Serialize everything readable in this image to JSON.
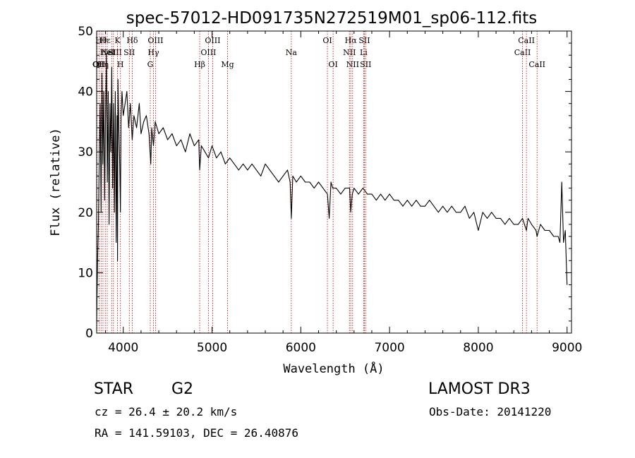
{
  "chart_data": {
    "type": "line",
    "title": "spec-57012-HD091735N272519M01_sp06-112.fits",
    "xlabel": "Wavelength (Å)",
    "ylabel": "Flux (relative)",
    "xlim": [
      3700,
      9050
    ],
    "ylim": [
      0,
      50
    ],
    "xticks": [
      4000,
      5000,
      6000,
      7000,
      8000,
      9000
    ],
    "yticks": [
      0,
      10,
      20,
      30,
      40,
      50
    ],
    "grid": false,
    "series": [
      {
        "name": "flux",
        "x": [
          3700,
          3710,
          3720,
          3730,
          3740,
          3750,
          3760,
          3770,
          3780,
          3790,
          3800,
          3810,
          3820,
          3830,
          3840,
          3850,
          3860,
          3870,
          3880,
          3890,
          3900,
          3910,
          3920,
          3930,
          3935,
          3940,
          3950,
          3960,
          3968,
          3975,
          3985,
          4000,
          4020,
          4040,
          4060,
          4080,
          4101,
          4120,
          4150,
          4180,
          4200,
          4230,
          4260,
          4290,
          4310,
          4320,
          4340,
          4360,
          4400,
          4450,
          4500,
          4550,
          4600,
          4650,
          4700,
          4750,
          4800,
          4850,
          4861,
          4880,
          4920,
          4960,
          5000,
          5050,
          5100,
          5150,
          5200,
          5250,
          5300,
          5350,
          5400,
          5450,
          5500,
          5550,
          5600,
          5650,
          5700,
          5750,
          5800,
          5850,
          5880,
          5893,
          5910,
          5950,
          6000,
          6050,
          6100,
          6150,
          6200,
          6250,
          6300,
          6320,
          6340,
          6360,
          6400,
          6450,
          6500,
          6550,
          6563,
          6580,
          6600,
          6650,
          6700,
          6750,
          6800,
          6850,
          6900,
          6950,
          7000,
          7050,
          7100,
          7150,
          7200,
          7250,
          7300,
          7350,
          7400,
          7450,
          7500,
          7550,
          7600,
          7650,
          7700,
          7750,
          7800,
          7850,
          7900,
          7950,
          8000,
          8050,
          8100,
          8150,
          8200,
          8250,
          8300,
          8350,
          8400,
          8450,
          8498,
          8520,
          8542,
          8560,
          8600,
          8650,
          8662,
          8700,
          8750,
          8800,
          8850,
          8900,
          8920,
          8940,
          8960,
          8980,
          9000
        ],
        "values": [
          2,
          12,
          18,
          30,
          38,
          20,
          43,
          28,
          40,
          22,
          36,
          46,
          25,
          40,
          18,
          38,
          30,
          44,
          24,
          38,
          20,
          40,
          15,
          36,
          12,
          42,
          34,
          28,
          20,
          36,
          40,
          36,
          38,
          40,
          34,
          38,
          32,
          36,
          34,
          38,
          33,
          35,
          36,
          33,
          28,
          34,
          31,
          35,
          33,
          34,
          32,
          33,
          31,
          32,
          30,
          33,
          31,
          32,
          27,
          31,
          30,
          29,
          31,
          29,
          30,
          28,
          29,
          28,
          27,
          28,
          27,
          28,
          27,
          26,
          28,
          27,
          26,
          25,
          26,
          27,
          25,
          19,
          26,
          25,
          26,
          25,
          25,
          24,
          25,
          24,
          23,
          19,
          25,
          24,
          24,
          23,
          24,
          24,
          20,
          23,
          24,
          23,
          24,
          23,
          23,
          22,
          23,
          22,
          23,
          22,
          22,
          21,
          22,
          21,
          22,
          21,
          21,
          22,
          21,
          20,
          21,
          20,
          21,
          20,
          20,
          21,
          19,
          20,
          17,
          20,
          19,
          20,
          19,
          19,
          18,
          19,
          18,
          18,
          19,
          18,
          17,
          19,
          18,
          17,
          16,
          18,
          17,
          17,
          16,
          16,
          15,
          25,
          15,
          17,
          8
        ]
      }
    ],
    "lines": [
      {
        "wave": 3704,
        "label": "OI",
        "row": 2
      },
      {
        "wave": 3727,
        "label": "OII",
        "row": 2
      },
      {
        "wave": 3750,
        "label": "Hθ",
        "row": 0
      },
      {
        "wave": 3771,
        "label": "Hη",
        "row": 2
      },
      {
        "wave": 3797,
        "label": "Hε",
        "row": 0
      },
      {
        "wave": 3819,
        "label": "HeI",
        "row": 1
      },
      {
        "wave": 3869,
        "label": "NeIII",
        "row": 1
      },
      {
        "wave": 3889,
        "label": "SII",
        "row": 1
      },
      {
        "wave": 3934,
        "label": "K",
        "row": 0
      },
      {
        "wave": 3968,
        "label": "H",
        "row": 2
      },
      {
        "wave": 4101,
        "label": "Hδ",
        "row": 0
      },
      {
        "wave": 4068,
        "label": "SII",
        "row": 1
      },
      {
        "wave": 4304,
        "label": "G",
        "row": 2
      },
      {
        "wave": 4340,
        "label": "Hγ",
        "row": 1
      },
      {
        "wave": 4363,
        "label": "OIII",
        "row": 0
      },
      {
        "wave": 4861,
        "label": "Hβ",
        "row": 2
      },
      {
        "wave": 4959,
        "label": "OIII",
        "row": 1
      },
      {
        "wave": 5007,
        "label": "OIII",
        "row": 0
      },
      {
        "wave": 5175,
        "label": "Mg",
        "row": 2
      },
      {
        "wave": 5893,
        "label": "Na",
        "row": 1
      },
      {
        "wave": 6300,
        "label": "OI",
        "row": 0
      },
      {
        "wave": 6364,
        "label": "OI",
        "row": 2
      },
      {
        "wave": 6548,
        "label": "NII",
        "row": 1
      },
      {
        "wave": 6563,
        "label": "Hα",
        "row": 0
      },
      {
        "wave": 6584,
        "label": "NII",
        "row": 2
      },
      {
        "wave": 6708,
        "label": "Li",
        "row": 1
      },
      {
        "wave": 6717,
        "label": "SII",
        "row": 0
      },
      {
        "wave": 6731,
        "label": "SII",
        "row": 2
      },
      {
        "wave": 8498,
        "label": "CaII",
        "row": 1
      },
      {
        "wave": 8542,
        "label": "CaII",
        "row": 0
      },
      {
        "wave": 8662,
        "label": "CaII",
        "row": 2
      }
    ]
  },
  "info": {
    "object_class": "STAR",
    "subclass": "G2",
    "survey": "LAMOST DR3",
    "velocity": "cz = 26.4 ± 20.2 km/s",
    "obs_date": "Obs-Date: 20141220",
    "coords": "RA = 141.59103, DEC =  26.40876"
  }
}
